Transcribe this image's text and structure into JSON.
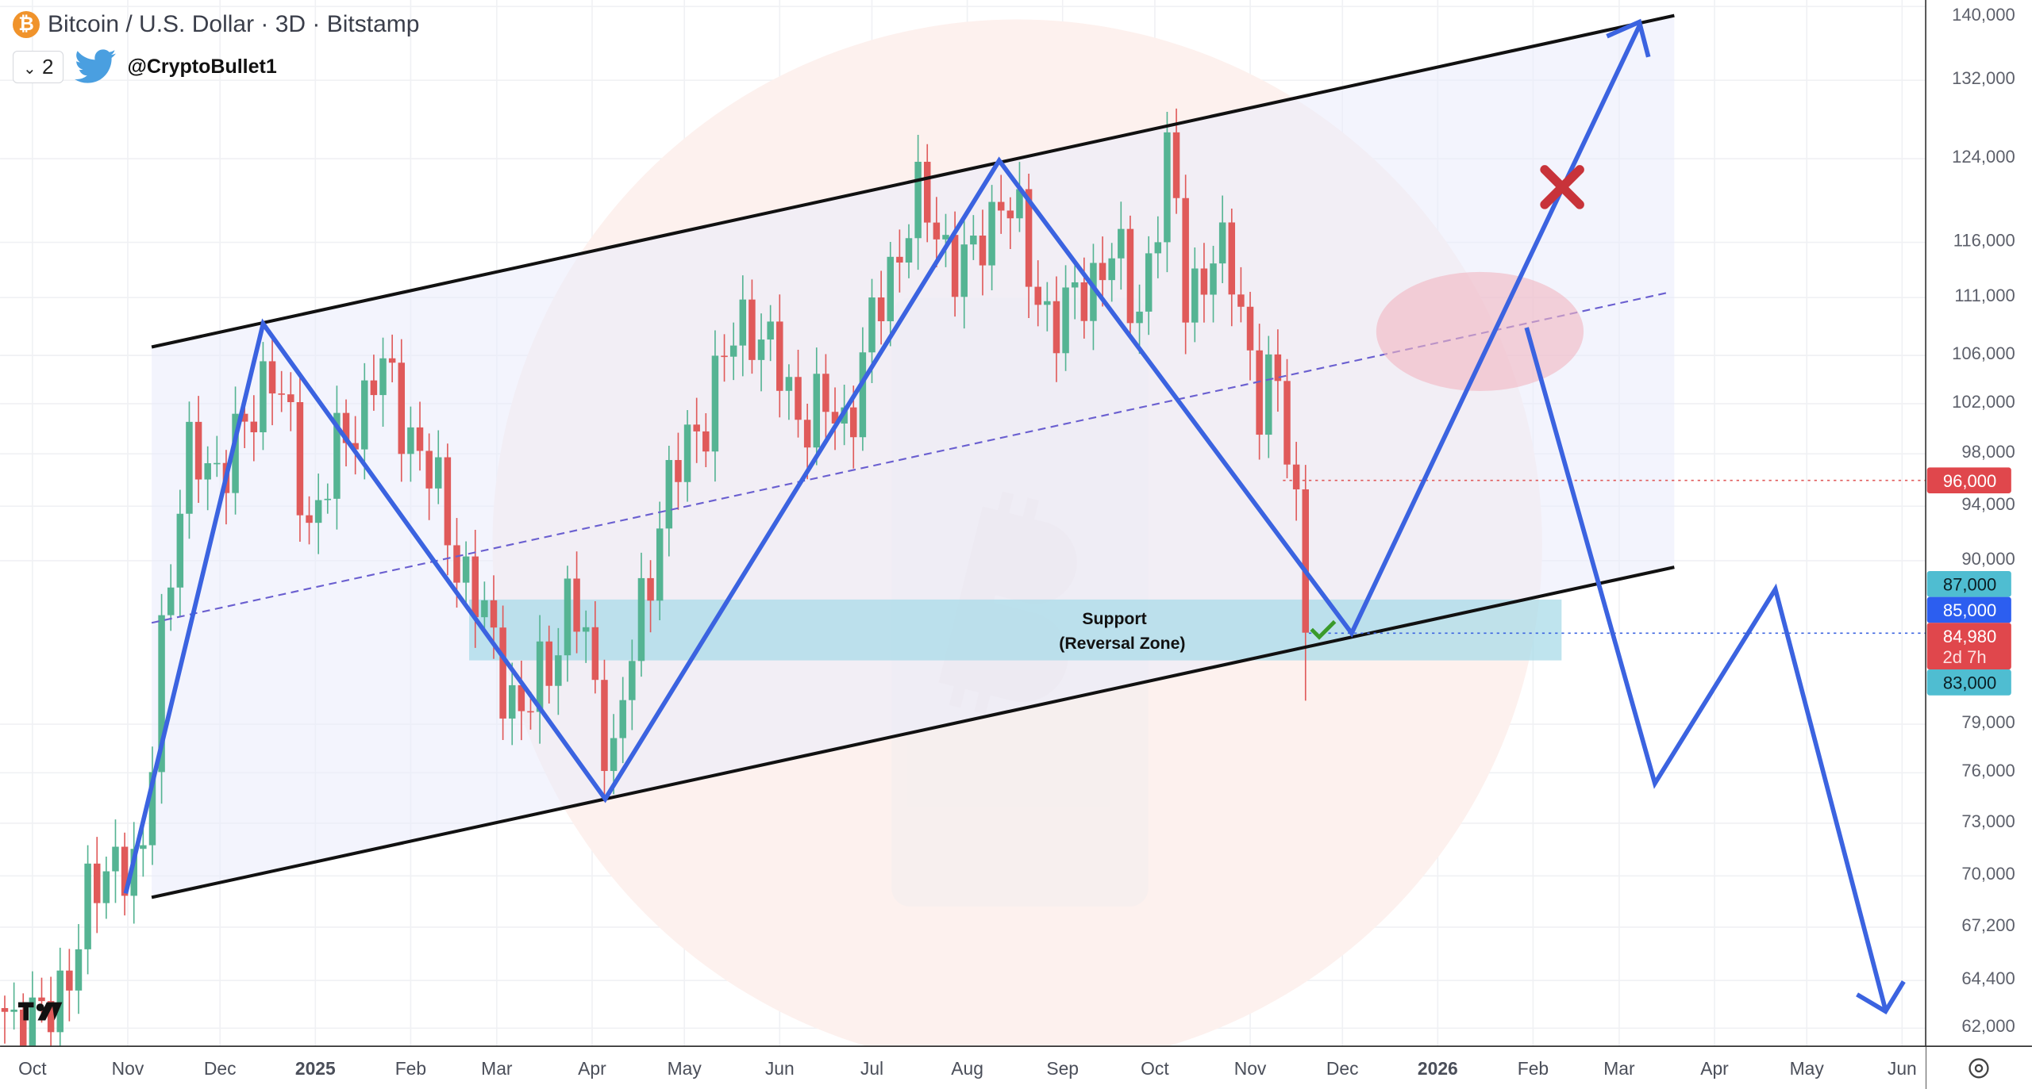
{
  "header": {
    "title": "Bitcoin / U.S. Dollar · 3D · Bitstamp",
    "indicator_count": "2",
    "handle": "@CryptoBullet1",
    "coin_icon": "bitcoin-icon",
    "social_icon": "twitter-bird-icon"
  },
  "annotations": {
    "support_title": "Support",
    "support_subtitle": "(Reversal Zone)"
  },
  "price_tags": {
    "resistance": "96,000",
    "zone_top": "87,000",
    "mid": "85,000",
    "last_price": "84,980",
    "countdown": "2d 7h",
    "zone_bottom": "83,000"
  },
  "colors": {
    "up": "#55b493",
    "down": "#e05a5a",
    "projection": "#3b63e0",
    "channel": "#111111",
    "support_zone": "#a9dbe8",
    "tag_red": "#e0474c",
    "tag_teal": "#4fbdd1",
    "tag_blue": "#2c5ef0"
  },
  "chart_data": {
    "type": "candlestick",
    "title": "Bitcoin / U.S. Dollar · 3D · Bitstamp",
    "y_scale": "log",
    "ylim": [
      62000,
      140000
    ],
    "y_ticks": [
      "140,000",
      "132,000",
      "124,000",
      "116,000",
      "111,000",
      "106,000",
      "102,000",
      "98,000",
      "94,000",
      "90,000",
      "79,000",
      "76,000",
      "73,000",
      "70,000",
      "67,200",
      "64,400",
      "62,000"
    ],
    "x_ticks": [
      {
        "label": "Oct",
        "date": "2024-10-01"
      },
      {
        "label": "Nov",
        "date": "2024-11-01"
      },
      {
        "label": "Dec",
        "date": "2024-12-01"
      },
      {
        "label": "2025",
        "date": "2025-01-01",
        "bold": true
      },
      {
        "label": "Feb",
        "date": "2025-02-01"
      },
      {
        "label": "Mar",
        "date": "2025-03-01"
      },
      {
        "label": "Apr",
        "date": "2025-04-01"
      },
      {
        "label": "May",
        "date": "2025-05-01"
      },
      {
        "label": "Jun",
        "date": "2025-06-01"
      },
      {
        "label": "Jul",
        "date": "2025-07-01"
      },
      {
        "label": "Aug",
        "date": "2025-08-01"
      },
      {
        "label": "Sep",
        "date": "2025-09-01"
      },
      {
        "label": "Oct",
        "date": "2025-10-01"
      },
      {
        "label": "Nov",
        "date": "2025-11-01"
      },
      {
        "label": "Dec",
        "date": "2025-12-01"
      },
      {
        "label": "2026",
        "date": "2026-01-01",
        "bold": true
      },
      {
        "label": "Feb",
        "date": "2026-02-01"
      },
      {
        "label": "Mar",
        "date": "2026-03-01"
      },
      {
        "label": "Apr",
        "date": "2026-04-01"
      },
      {
        "label": "May",
        "date": "2026-05-01"
      },
      {
        "label": "Jun",
        "date": "2026-06-01"
      }
    ],
    "candle_interval": "3D",
    "price_path": [
      [
        "2024-09-19",
        63000
      ],
      [
        "2024-10-05",
        62000
      ],
      [
        "2024-10-20",
        68500
      ],
      [
        "2024-10-29",
        72000
      ],
      [
        "2024-11-05",
        68500
      ],
      [
        "2024-11-13",
        88000
      ],
      [
        "2024-11-22",
        98000
      ],
      [
        "2024-12-05",
        97000
      ],
      [
        "2024-12-17",
        106000
      ],
      [
        "2024-12-30",
        93000
      ],
      [
        "2025-01-07",
        97000
      ],
      [
        "2025-01-21",
        105000
      ],
      [
        "2025-02-01",
        100000
      ],
      [
        "2025-02-24",
        86000
      ],
      [
        "2025-03-10",
        79000
      ],
      [
        "2025-03-25",
        87500
      ],
      [
        "2025-04-08",
        77000
      ],
      [
        "2025-04-23",
        93500
      ],
      [
        "2025-05-10",
        103000
      ],
      [
        "2025-05-22",
        110000
      ],
      [
        "2025-06-05",
        102000
      ],
      [
        "2025-06-22",
        100500
      ],
      [
        "2025-07-10",
        116000
      ],
      [
        "2025-07-14",
        120000
      ],
      [
        "2025-08-02",
        113000
      ],
      [
        "2025-08-13",
        122000
      ],
      [
        "2025-08-22",
        112000
      ],
      [
        "2025-09-01",
        108500
      ],
      [
        "2025-09-16",
        115500
      ],
      [
        "2025-09-25",
        109500
      ],
      [
        "2025-10-06",
        124000
      ],
      [
        "2025-10-11",
        112000
      ],
      [
        "2025-10-27",
        114500
      ],
      [
        "2025-11-04",
        101000
      ],
      [
        "2025-11-11",
        104500
      ],
      [
        "2025-11-17",
        92000
      ],
      [
        "2025-11-21",
        84980
      ]
    ],
    "last_price": 84980,
    "levels": {
      "resistance": 96000,
      "support_zone": [
        83000,
        87000
      ],
      "mid": 85000
    },
    "grid": true
  }
}
